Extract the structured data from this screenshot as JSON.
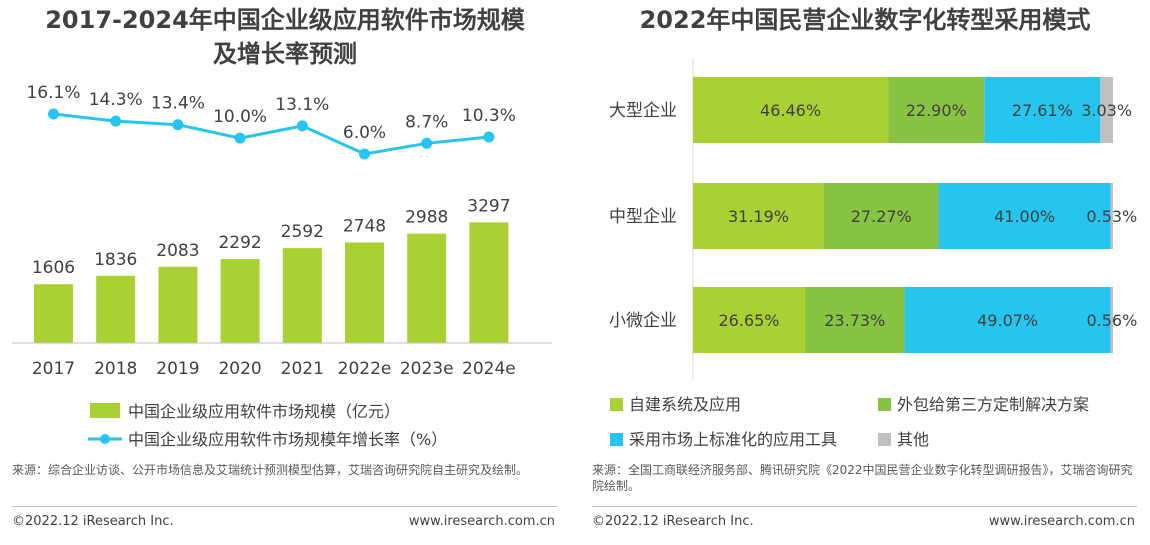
{
  "left": {
    "title_line1": "2017-2024年中国企业级应用软件市场规模",
    "title_line2": "及增长率预测",
    "source": "来源：综合企业访谈、公开市场信息及艾瑞统计预测模型估算，艾瑞咨询研究院自主研究及绘制。",
    "footer_left": "©2022.12 iResearch Inc.",
    "footer_right": "www.iresearch.com.cn",
    "colors": {
      "bar": "#a9d134",
      "line": "#26c5f0"
    }
  },
  "right": {
    "title": "2022年中国民营企业数字化转型采用模式",
    "source": "来源：全国工商联经济服务部、腾讯研究院《2022中国民营企业数字化转型调研报告》，艾瑞咨询研究院绘制。",
    "footer_left": "©2022.12 iResearch Inc.",
    "footer_right": "www.iresearch.com.cn",
    "colors": [
      "#a9d134",
      "#86c441",
      "#26c5f0",
      "#c0c0c0"
    ]
  },
  "chart_data": [
    {
      "type": "bar",
      "title": "2017-2024年中国企业级应用软件市场规模及增长率预测",
      "categories": [
        "2017",
        "2018",
        "2019",
        "2020",
        "2021",
        "2022e",
        "2023e",
        "2024e"
      ],
      "series": [
        {
          "name": "中国企业级应用软件市场规模（亿元）",
          "type": "bar",
          "values": [
            1606,
            1836,
            2083,
            2292,
            2592,
            2748,
            2988,
            3297
          ],
          "labels": [
            "1606",
            "1836",
            "2083",
            "2292",
            "2592",
            "2748",
            "2988",
            "3297"
          ]
        },
        {
          "name": "中国企业级应用软件市场规模年增长率（%）",
          "type": "line",
          "values": [
            16.1,
            14.3,
            13.4,
            10.0,
            13.1,
            6.0,
            8.7,
            10.3
          ],
          "labels": [
            "16.1%",
            "14.3%",
            "13.4%",
            "10.0%",
            "13.1%",
            "6.0%",
            "8.7%",
            "10.3%"
          ]
        }
      ],
      "legend": "bottom"
    },
    {
      "type": "bar",
      "stacked": "percent",
      "orientation": "horizontal",
      "title": "2022年中国民营企业数字化转型采用模式",
      "categories": [
        "大型企业",
        "中型企业",
        "小微企业"
      ],
      "series": [
        {
          "name": "自建系统及应用",
          "values": [
            46.46,
            31.19,
            26.65
          ],
          "labels": [
            "46.46%",
            "31.19%",
            "26.65%"
          ]
        },
        {
          "name": "外包给第三方定制解决方案",
          "values": [
            22.9,
            27.27,
            23.73
          ],
          "labels": [
            "22.90%",
            "27.27%",
            "23.73%"
          ]
        },
        {
          "name": "采用市场上标准化的应用工具",
          "values": [
            27.61,
            41.0,
            49.07
          ],
          "labels": [
            "27.61%",
            "41.00%",
            "49.07%"
          ]
        },
        {
          "name": "其他",
          "values": [
            3.03,
            0.53,
            0.56
          ],
          "labels": [
            "3.03%",
            "0.53%",
            "0.56%"
          ]
        }
      ],
      "legend": "bottom"
    }
  ]
}
